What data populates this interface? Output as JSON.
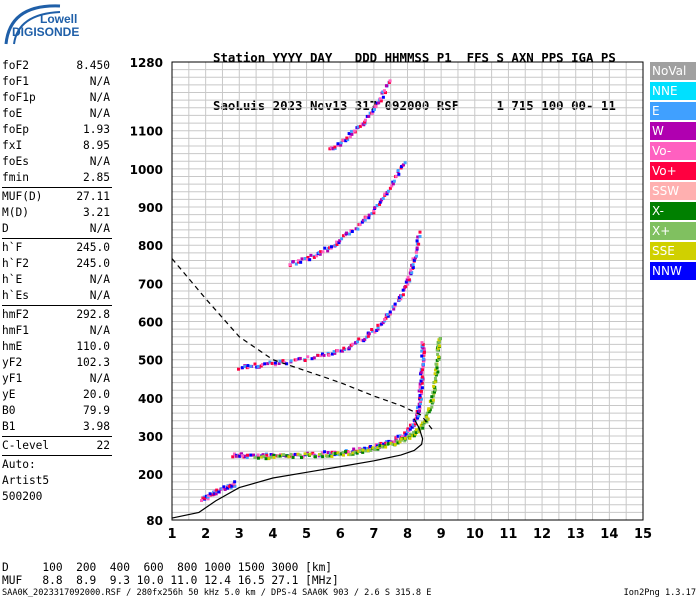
{
  "logo": {
    "line1": "Lowell",
    "line2": "DIGISONDE"
  },
  "header": {
    "line1": "Station YYYY DAY   DDD HHMMSS P1  FFS S AXN PPS IGA PS",
    "line2": "SaoLuis 2023 Nov13 317 092000 RSF     1 715 100 00- 11"
  },
  "params": [
    [
      {
        "k": "foF2",
        "v": "8.450"
      },
      {
        "k": "foF1",
        "v": "N/A"
      },
      {
        "k": "foF1p",
        "v": "N/A"
      },
      {
        "k": "foE",
        "v": "N/A"
      },
      {
        "k": "foEp",
        "v": "1.93"
      },
      {
        "k": "fxI",
        "v": "8.95"
      },
      {
        "k": "foEs",
        "v": "N/A"
      },
      {
        "k": "fmin",
        "v": "2.85"
      }
    ],
    [
      {
        "k": "MUF(D)",
        "v": "27.11"
      },
      {
        "k": "M(D)",
        "v": "3.21"
      },
      {
        "k": "D",
        "v": "N/A"
      }
    ],
    [
      {
        "k": "h`F",
        "v": "245.0"
      },
      {
        "k": "h`F2",
        "v": "245.0"
      },
      {
        "k": "h`E",
        "v": "N/A"
      },
      {
        "k": "h`Es",
        "v": "N/A"
      }
    ],
    [
      {
        "k": "hmF2",
        "v": "292.8"
      },
      {
        "k": "hmF1",
        "v": "N/A"
      },
      {
        "k": "hmE",
        "v": "110.0"
      },
      {
        "k": "yF2",
        "v": "102.3"
      },
      {
        "k": "yF1",
        "v": "N/A"
      },
      {
        "k": "yE",
        "v": "20.0"
      },
      {
        "k": "B0",
        "v": "79.9"
      },
      {
        "k": "B1",
        "v": "3.98"
      }
    ],
    [
      {
        "k": "C-level",
        "v": "22"
      }
    ]
  ],
  "auto": {
    "line1": "Auto:",
    "line2": "Artist5",
    "line3": "500200"
  },
  "legend": [
    {
      "label": "NoVal",
      "color": "#a0a0a0"
    },
    {
      "label": "NNE",
      "color": "#00e0ff"
    },
    {
      "label": "E",
      "color": "#40a0ff"
    },
    {
      "label": "W",
      "color": "#b000b0"
    },
    {
      "label": "Vo-",
      "color": "#ff60c0"
    },
    {
      "label": "Vo+",
      "color": "#ff0040"
    },
    {
      "label": "SSW",
      "color": "#ffb0b0"
    },
    {
      "label": "X-",
      "color": "#008000"
    },
    {
      "label": "X+",
      "color": "#80c060"
    },
    {
      "label": "SSE",
      "color": "#d0d000"
    },
    {
      "label": "NNW",
      "color": "#0000ff"
    }
  ],
  "footer": {
    "d_line": "D     100  200  400  600  800 1000 1500 3000 [km]",
    "muf_line": "MUF   8.8  8.9  9.3 10.0 11.0 12.4 16.5 27.1 [MHz]",
    "bottom": "SAA0K_2023317092000.RSF / 280fx256h 50 kHz 5.0 km / DPS-4 SAA0K 903 / 2.6 S 315.8 E",
    "version": "Ion2Png 1.3.17"
  },
  "chart_data": {
    "type": "scatter",
    "xlim": [
      1,
      15
    ],
    "ylim": [
      80,
      1280
    ],
    "x_ticks": [
      1,
      2,
      3,
      4,
      5,
      6,
      7,
      8,
      9,
      10,
      11,
      12,
      13,
      14,
      15
    ],
    "y_ticks": [
      80,
      200,
      300,
      400,
      500,
      600,
      700,
      800,
      900,
      1000,
      1100,
      1280
    ],
    "grid": true,
    "traces": [
      {
        "mode": "O",
        "points": [
          [
            2.85,
            250
          ],
          [
            3.2,
            248
          ],
          [
            4.0,
            248
          ],
          [
            5.0,
            250
          ],
          [
            5.8,
            255
          ],
          [
            6.5,
            262
          ],
          [
            7.0,
            272
          ],
          [
            7.5,
            284
          ],
          [
            7.9,
            300
          ],
          [
            8.15,
            325
          ],
          [
            8.3,
            360
          ],
          [
            8.38,
            400
          ],
          [
            8.42,
            450
          ],
          [
            8.45,
            500
          ],
          [
            8.47,
            540
          ]
        ]
      },
      {
        "mode": "X",
        "points": [
          [
            3.5,
            245
          ],
          [
            4.5,
            247
          ],
          [
            5.5,
            250
          ],
          [
            6.3,
            255
          ],
          [
            7.0,
            265
          ],
          [
            7.6,
            280
          ],
          [
            8.1,
            300
          ],
          [
            8.4,
            320
          ],
          [
            8.6,
            350
          ],
          [
            8.75,
            400
          ],
          [
            8.85,
            460
          ],
          [
            8.92,
            520
          ],
          [
            8.95,
            560
          ]
        ]
      },
      {
        "mode": "O",
        "points": [
          [
            3.0,
            480
          ],
          [
            3.6,
            485
          ],
          [
            4.5,
            495
          ],
          [
            5.5,
            510
          ],
          [
            6.2,
            530
          ],
          [
            6.8,
            560
          ],
          [
            7.3,
            600
          ],
          [
            7.7,
            650
          ],
          [
            8.0,
            700
          ],
          [
            8.2,
            760
          ],
          [
            8.35,
            830
          ]
        ]
      },
      {
        "mode": "O",
        "points": [
          [
            4.5,
            750
          ],
          [
            5.2,
            770
          ],
          [
            5.8,
            800
          ],
          [
            6.4,
            840
          ],
          [
            7.0,
            890
          ],
          [
            7.5,
            950
          ],
          [
            7.9,
            1020
          ]
        ]
      },
      {
        "mode": "O",
        "points": [
          [
            5.7,
            1050
          ],
          [
            6.2,
            1080
          ],
          [
            6.7,
            1120
          ],
          [
            7.1,
            1170
          ],
          [
            7.5,
            1230
          ]
        ]
      },
      {
        "mode": "O",
        "points": [
          [
            1.9,
            135
          ],
          [
            2.2,
            148
          ],
          [
            2.6,
            165
          ],
          [
            2.9,
            175
          ]
        ]
      }
    ],
    "profile": [
      [
        1.0,
        85
      ],
      [
        1.8,
        100
      ],
      [
        2.3,
        130
      ],
      [
        3.0,
        165
      ],
      [
        4.0,
        190
      ],
      [
        5.0,
        205
      ],
      [
        6.0,
        220
      ],
      [
        7.0,
        235
      ],
      [
        7.8,
        250
      ],
      [
        8.2,
        262
      ],
      [
        8.42,
        278
      ],
      [
        8.45,
        292.8
      ],
      [
        8.35,
        320
      ],
      [
        8.2,
        345
      ]
    ],
    "muf_curve": [
      [
        1.0,
        765
      ],
      [
        2.0,
        660
      ],
      [
        3.0,
        560
      ],
      [
        4.0,
        500
      ],
      [
        5.0,
        470
      ],
      [
        6.0,
        440
      ],
      [
        7.0,
        405
      ],
      [
        7.8,
        380
      ],
      [
        8.4,
        355
      ],
      [
        8.8,
        310
      ]
    ]
  }
}
